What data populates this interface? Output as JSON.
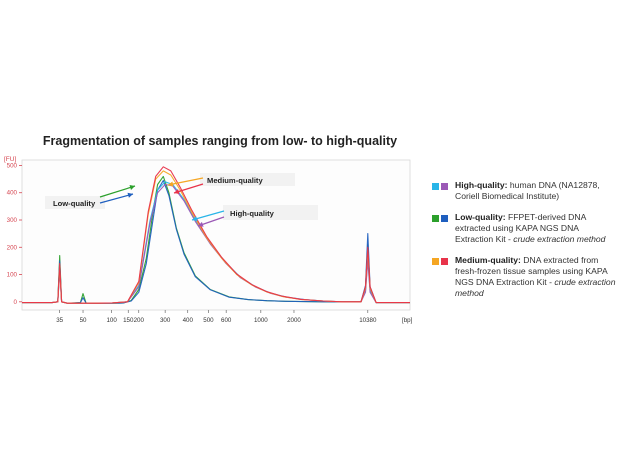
{
  "chart_data": {
    "type": "line",
    "title": "Fragmentation of samples ranging from low- to high-quality",
    "ylabel": "[FU]",
    "xlabel": "[bp]",
    "ylim": [
      -30,
      520
    ],
    "y_ticks": [
      0,
      100,
      200,
      300,
      400,
      500
    ],
    "x_tick_labels": [
      "35",
      "50",
      "100",
      "150",
      "200",
      "300",
      "400",
      "500",
      "600",
      "1000",
      "2000",
      "10380"
    ],
    "x_tick_positions": [
      1,
      1.62,
      2.38,
      2.82,
      3.1,
      3.8,
      4.4,
      4.95,
      5.42,
      6.34,
      7.22,
      9.18
    ],
    "x_range": [
      0,
      10.3
    ],
    "series": [
      {
        "name": "Low-quality sample 1",
        "group": "low-quality",
        "color": "#2ca02c",
        "x": [
          0,
          0.8,
          0.95,
          1.0,
          1.05,
          1.2,
          1.4,
          1.55,
          1.62,
          1.7,
          1.9,
          2.2,
          2.5,
          2.7,
          2.9,
          3.1,
          3.3,
          3.5,
          3.6,
          3.75,
          3.9,
          4.1,
          4.3,
          4.6,
          5.0,
          5.5,
          6.0,
          6.5,
          7.0,
          8.0,
          9.0,
          9.12,
          9.18,
          9.24,
          9.4,
          10.3
        ],
        "y": [
          -3,
          -3,
          0,
          170,
          0,
          -5,
          -4,
          -3,
          30,
          -4,
          -5,
          -5,
          -5,
          -4,
          5,
          45,
          160,
          350,
          430,
          460,
          400,
          270,
          180,
          95,
          45,
          18,
          8,
          4,
          2,
          0,
          0,
          50,
          210,
          45,
          -3,
          -3
        ]
      },
      {
        "name": "Low-quality sample 2",
        "group": "low-quality",
        "color": "#1f5fbf",
        "x": [
          0,
          0.8,
          0.95,
          1.0,
          1.05,
          1.2,
          1.4,
          1.55,
          1.62,
          1.7,
          1.9,
          2.2,
          2.5,
          2.7,
          2.9,
          3.1,
          3.3,
          3.5,
          3.6,
          3.75,
          3.9,
          4.1,
          4.3,
          4.6,
          5.0,
          5.5,
          6.0,
          6.5,
          7.0,
          8.0,
          9.0,
          9.12,
          9.18,
          9.24,
          9.4,
          10.3
        ],
        "y": [
          -3,
          -3,
          0,
          150,
          0,
          -5,
          -4,
          -3,
          15,
          -4,
          -5,
          -5,
          -5,
          -4,
          3,
          35,
          140,
          320,
          410,
          445,
          390,
          265,
          175,
          92,
          44,
          17,
          8,
          4,
          2,
          0,
          0,
          60,
          250,
          55,
          -3,
          -3
        ]
      },
      {
        "name": "High-quality sample 1",
        "group": "high-quality",
        "color": "#29b5e8",
        "x": [
          0,
          0.8,
          0.95,
          1.0,
          1.05,
          1.2,
          1.6,
          2.0,
          2.4,
          2.8,
          3.1,
          3.4,
          3.6,
          3.8,
          4.0,
          4.3,
          4.6,
          5.0,
          5.4,
          5.8,
          6.2,
          6.6,
          7.0,
          7.5,
          8.0,
          8.5,
          9.0,
          9.12,
          9.18,
          9.24,
          9.4,
          10.0,
          10.3
        ],
        "y": [
          -3,
          -3,
          0,
          120,
          0,
          -5,
          -5,
          -5,
          -4,
          0,
          60,
          300,
          410,
          440,
          430,
          375,
          300,
          215,
          145,
          90,
          55,
          32,
          18,
          8,
          3,
          0,
          0,
          40,
          160,
          40,
          -3,
          -3,
          -3
        ]
      },
      {
        "name": "High-quality sample 2",
        "group": "high-quality",
        "color": "#9b59b6",
        "x": [
          0,
          0.8,
          0.95,
          1.0,
          1.05,
          1.2,
          1.6,
          2.0,
          2.4,
          2.8,
          3.1,
          3.4,
          3.6,
          3.8,
          4.0,
          4.3,
          4.6,
          5.0,
          5.4,
          5.8,
          6.2,
          6.6,
          7.0,
          7.5,
          8.0,
          8.5,
          9.0,
          9.12,
          9.18,
          9.24,
          9.4,
          10.0,
          10.3
        ],
        "y": [
          -3,
          -3,
          0,
          110,
          0,
          -5,
          -5,
          -5,
          -4,
          0,
          55,
          290,
          400,
          430,
          425,
          370,
          295,
          212,
          143,
          88,
          54,
          31,
          17,
          8,
          3,
          0,
          0,
          35,
          150,
          35,
          -3,
          -3,
          -3
        ]
      },
      {
        "name": "Medium-quality sample 1",
        "group": "medium-quality",
        "color": "#f5a623",
        "x": [
          0,
          0.8,
          0.95,
          1.0,
          1.05,
          1.2,
          1.6,
          2.0,
          2.4,
          2.8,
          3.1,
          3.35,
          3.55,
          3.75,
          3.95,
          4.2,
          4.5,
          4.9,
          5.3,
          5.7,
          6.1,
          6.5,
          6.9,
          7.4,
          8.0,
          8.5,
          9.0,
          9.12,
          9.18,
          9.24,
          9.4,
          10.0,
          10.3
        ],
        "y": [
          -3,
          -3,
          0,
          130,
          0,
          -5,
          -5,
          -5,
          -4,
          0,
          70,
          320,
          450,
          480,
          465,
          410,
          330,
          235,
          160,
          100,
          62,
          36,
          20,
          9,
          3,
          0,
          0,
          50,
          190,
          50,
          -3,
          -3,
          -3
        ]
      },
      {
        "name": "Medium-quality sample 2",
        "group": "medium-quality",
        "color": "#e8334a",
        "x": [
          0,
          0.8,
          0.95,
          1.0,
          1.05,
          1.2,
          1.6,
          2.0,
          2.4,
          2.8,
          3.1,
          3.35,
          3.55,
          3.75,
          3.95,
          4.2,
          4.5,
          4.9,
          5.3,
          5.7,
          6.1,
          6.5,
          6.9,
          7.4,
          8.0,
          8.5,
          9.0,
          9.12,
          9.18,
          9.24,
          9.4,
          10.0,
          10.3
        ],
        "y": [
          -3,
          -3,
          0,
          140,
          0,
          -5,
          -5,
          -5,
          -4,
          0,
          75,
          330,
          460,
          495,
          480,
          420,
          338,
          240,
          163,
          102,
          63,
          37,
          21,
          9,
          3,
          0,
          0,
          55,
          200,
          55,
          -3,
          -3,
          -3
        ]
      }
    ],
    "annotations": [
      {
        "text": "Low-quality",
        "arrow_colors": [
          "#2ca02c",
          "#1f5fbf"
        ]
      },
      {
        "text": "Medium-quality",
        "arrow_colors": [
          "#f5a623",
          "#e8334a"
        ]
      },
      {
        "text": "High-quality",
        "arrow_colors": [
          "#29b5e8",
          "#9b59b6"
        ]
      }
    ],
    "legend": [
      {
        "colors": [
          "#29b5e8",
          "#9b59b6"
        ],
        "label": "High-quality:",
        "text": " human DNA (NA12878, Coriell Biomedical Institute)",
        "italic": ""
      },
      {
        "colors": [
          "#2ca02c",
          "#1f5fbf"
        ],
        "label": "Low-quality:",
        "text": " FFPET-derived DNA extracted using KAPA NGS DNA Extraction Kit - ",
        "italic": "crude extraction method"
      },
      {
        "colors": [
          "#f5a623",
          "#e8334a"
        ],
        "label": "Medium-quality:",
        "text": " DNA extracted from fresh-frozen tissue samples using KAPA NGS DNA Extraction Kit - ",
        "italic": "crude extraction method"
      }
    ]
  }
}
